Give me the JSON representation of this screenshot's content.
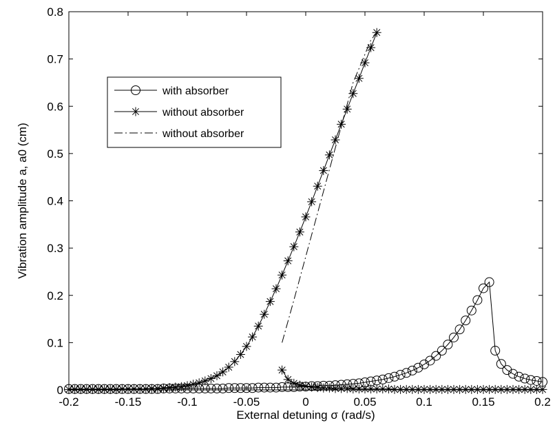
{
  "chart_data": {
    "type": "line",
    "title": "",
    "xlabel": "External detuning σ (rad/s)",
    "ylabel": "Vibration amplitude a, a0 (cm)",
    "xlim": [
      -0.2,
      0.2
    ],
    "ylim": [
      0,
      0.8
    ],
    "xticks": [
      -0.2,
      -0.15,
      -0.1,
      -0.05,
      0,
      0.05,
      0.1,
      0.15,
      0.2
    ],
    "xtick_labels": [
      "-0.2",
      "-0.15",
      "-0.1",
      "-0.05",
      "0",
      "0.05",
      "0.1",
      "0.15",
      "0.2"
    ],
    "yticks": [
      0,
      0.1,
      0.2,
      0.3,
      0.4,
      0.5,
      0.6,
      0.7,
      0.8
    ],
    "ytick_labels": [
      "0",
      "0.1",
      "0.2",
      "0.3",
      "0.4",
      "0.5",
      "0.6",
      "0.7",
      "0.8"
    ],
    "grid": false,
    "legend_position": "top-left",
    "series": [
      {
        "name": "with absorber",
        "style": "solid-circle",
        "color": "#000000",
        "x": [
          -0.2,
          -0.195,
          -0.19,
          -0.185,
          -0.18,
          -0.175,
          -0.17,
          -0.165,
          -0.16,
          -0.155,
          -0.15,
          -0.145,
          -0.14,
          -0.135,
          -0.13,
          -0.125,
          -0.12,
          -0.115,
          -0.11,
          -0.105,
          -0.1,
          -0.095,
          -0.09,
          -0.085,
          -0.08,
          -0.075,
          -0.07,
          -0.065,
          -0.06,
          -0.055,
          -0.05,
          -0.045,
          -0.04,
          -0.035,
          -0.03,
          -0.025,
          -0.02,
          -0.015,
          -0.01,
          -0.005,
          0,
          0.005,
          0.01,
          0.015,
          0.02,
          0.025,
          0.03,
          0.035,
          0.04,
          0.045,
          0.05,
          0.055,
          0.06,
          0.065,
          0.07,
          0.075,
          0.08,
          0.085,
          0.09,
          0.095,
          0.1,
          0.105,
          0.11,
          0.115,
          0.12,
          0.125,
          0.13,
          0.135,
          0.14,
          0.145,
          0.15,
          0.155,
          0.16,
          0.165,
          0.17,
          0.175,
          0.18,
          0.185,
          0.19,
          0.195,
          0.2
        ],
        "y": [
          0.002,
          0.002,
          0.002,
          0.002,
          0.002,
          0.002,
          0.002,
          0.002,
          0.002,
          0.002,
          0.002,
          0.002,
          0.002,
          0.002,
          0.002,
          0.002,
          0.003,
          0.003,
          0.003,
          0.003,
          0.003,
          0.003,
          0.003,
          0.003,
          0.003,
          0.003,
          0.003,
          0.004,
          0.004,
          0.004,
          0.004,
          0.004,
          0.005,
          0.005,
          0.005,
          0.005,
          0.006,
          0.006,
          0.006,
          0.007,
          0.007,
          0.008,
          0.008,
          0.009,
          0.009,
          0.01,
          0.011,
          0.012,
          0.013,
          0.014,
          0.016,
          0.018,
          0.02,
          0.022,
          0.025,
          0.028,
          0.032,
          0.036,
          0.041,
          0.047,
          0.054,
          0.062,
          0.072,
          0.083,
          0.096,
          0.111,
          0.128,
          0.147,
          0.168,
          0.19,
          0.215,
          0.228,
          0.083,
          0.055,
          0.042,
          0.034,
          0.028,
          0.024,
          0.021,
          0.019,
          0.017
        ]
      },
      {
        "name": "without absorber",
        "style": "solid-star",
        "color": "#000000",
        "x": [
          -0.2,
          -0.195,
          -0.19,
          -0.185,
          -0.18,
          -0.175,
          -0.17,
          -0.165,
          -0.16,
          -0.155,
          -0.15,
          -0.145,
          -0.14,
          -0.135,
          -0.13,
          -0.125,
          -0.12,
          -0.115,
          -0.11,
          -0.105,
          -0.1,
          -0.095,
          -0.09,
          -0.085,
          -0.08,
          -0.075,
          -0.07,
          -0.065,
          -0.06,
          -0.055,
          -0.05,
          -0.045,
          -0.04,
          -0.035,
          -0.03,
          -0.025,
          -0.02,
          -0.015,
          -0.01,
          -0.005,
          0,
          0.005,
          0.01,
          0.015,
          0.02,
          0.025,
          0.03,
          0.035,
          0.04,
          0.045,
          0.05,
          0.055,
          0.06
        ],
        "y": [
          0.001,
          0.001,
          0.001,
          0.001,
          0.001,
          0.001,
          0.001,
          0.001,
          0.001,
          0.002,
          0.002,
          0.002,
          0.002,
          0.002,
          0.003,
          0.003,
          0.004,
          0.005,
          0.006,
          0.007,
          0.009,
          0.012,
          0.015,
          0.019,
          0.024,
          0.03,
          0.038,
          0.048,
          0.06,
          0.075,
          0.092,
          0.112,
          0.135,
          0.16,
          0.187,
          0.214,
          0.243,
          0.273,
          0.303,
          0.334,
          0.366,
          0.398,
          0.431,
          0.464,
          0.497,
          0.529,
          0.562,
          0.594,
          0.627,
          0.659,
          0.692,
          0.724,
          0.756
        ]
      },
      {
        "name": "without absorber",
        "style": "solid-star",
        "color": "#000000",
        "x": [
          -0.02,
          -0.015,
          -0.01,
          -0.005,
          0,
          0.005,
          0.01,
          0.015,
          0.02,
          0.025,
          0.03,
          0.035,
          0.04,
          0.045,
          0.05,
          0.055,
          0.06,
          0.065,
          0.07,
          0.075,
          0.08,
          0.085,
          0.09,
          0.095,
          0.1,
          0.105,
          0.11,
          0.115,
          0.12,
          0.125,
          0.13,
          0.135,
          0.14,
          0.145,
          0.15,
          0.155,
          0.16,
          0.165,
          0.17,
          0.175,
          0.18,
          0.185,
          0.19,
          0.195,
          0.2
        ],
        "y": [
          0.042,
          0.022,
          0.014,
          0.01,
          0.008,
          0.006,
          0.005,
          0.004,
          0.004,
          0.003,
          0.003,
          0.003,
          0.002,
          0.002,
          0.002,
          0.002,
          0.002,
          0.002,
          0.002,
          0.001,
          0.001,
          0.001,
          0.001,
          0.001,
          0.001,
          0.001,
          0.001,
          0.001,
          0.001,
          0.001,
          0.001,
          0.001,
          0.001,
          0.001,
          0.001,
          0.001,
          0.001,
          0.001,
          0.001,
          0.001,
          0.001,
          0.001,
          0.001,
          0.001,
          0.001
        ]
      },
      {
        "name": "without absorber",
        "style": "dash-dot",
        "color": "#000000",
        "x": [
          -0.02,
          -0.015,
          -0.01,
          -0.005,
          0,
          0.005,
          0.01,
          0.015,
          0.02,
          0.025,
          0.03,
          0.035,
          0.04,
          0.045,
          0.05,
          0.055,
          0.06
        ],
        "y": [
          0.1,
          0.145,
          0.19,
          0.236,
          0.282,
          0.328,
          0.374,
          0.42,
          0.466,
          0.512,
          0.558,
          0.604,
          0.65,
          0.68,
          0.71,
          0.74,
          0.756
        ]
      }
    ],
    "legend": {
      "entries": [
        {
          "label": "with absorber",
          "style": "solid-circle"
        },
        {
          "label": "without absorber",
          "style": "solid-star"
        },
        {
          "label": "without absorber",
          "style": "dash-dot"
        }
      ]
    }
  }
}
